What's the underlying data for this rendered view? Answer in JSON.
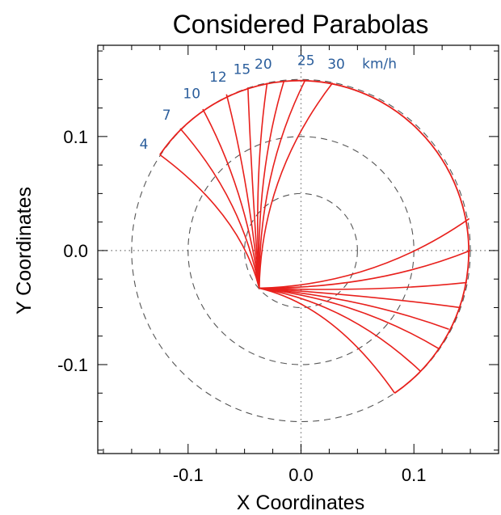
{
  "chart_data": {
    "type": "line",
    "title": "Considered Parabolas",
    "xlabel": "X Coordinates",
    "ylabel": "Y Coordinates",
    "xlim": [
      -0.18,
      0.175
    ],
    "ylim": [
      -0.178,
      0.18
    ],
    "xticks": [
      {
        "value": -0.1,
        "label": "-0.1"
      },
      {
        "value": 0.0,
        "label": "0.0"
      },
      {
        "value": 0.1,
        "label": "0.1"
      }
    ],
    "yticks": [
      {
        "value": 0.1,
        "label": "0.1"
      },
      {
        "value": 0.0,
        "label": "0.0"
      },
      {
        "value": -0.1,
        "label": "-0.1"
      }
    ],
    "grid": "dotted lines at x=0 and y=0",
    "reference_circles": [
      0.05,
      0.1,
      0.15
    ],
    "line_color": "#e8201c",
    "label_color": "#2b5e9c",
    "vertex": [
      -0.037,
      -0.033
    ],
    "outer_arc": {
      "radius": 0.15,
      "from_point": [
        -0.125,
        0.084
      ],
      "to_point": [
        0.083,
        -0.125
      ]
    },
    "upper_curves": [
      {
        "label": "4",
        "end": [
          -0.125,
          0.084
        ]
      },
      {
        "label": "7",
        "end": [
          -0.107,
          0.107
        ]
      },
      {
        "label": "10",
        "end": [
          -0.087,
          0.124
        ]
      },
      {
        "label": "12",
        "end": [
          -0.066,
          0.137
        ]
      },
      {
        "label": "15",
        "end": [
          -0.047,
          0.143
        ]
      },
      {
        "label": "20",
        "end": [
          -0.03,
          0.147
        ]
      },
      {
        "label": "",
        "end": [
          -0.015,
          0.149
        ]
      },
      {
        "label": "25",
        "end": [
          0.004,
          0.15
        ]
      },
      {
        "label": "30",
        "end": [
          0.028,
          0.147
        ]
      }
    ],
    "lower_curves": [
      {
        "end": [
          0.149,
          0.028
        ]
      },
      {
        "end": [
          0.15,
          0.0
        ]
      },
      {
        "end": [
          0.147,
          -0.028
        ]
      },
      {
        "end": [
          0.141,
          -0.05
        ]
      },
      {
        "end": [
          0.131,
          -0.069
        ]
      },
      {
        "end": [
          0.122,
          -0.086
        ]
      },
      {
        "end": [
          0.106,
          -0.106
        ]
      },
      {
        "end": [
          0.083,
          -0.125
        ]
      }
    ],
    "unit_label": "km/h"
  }
}
